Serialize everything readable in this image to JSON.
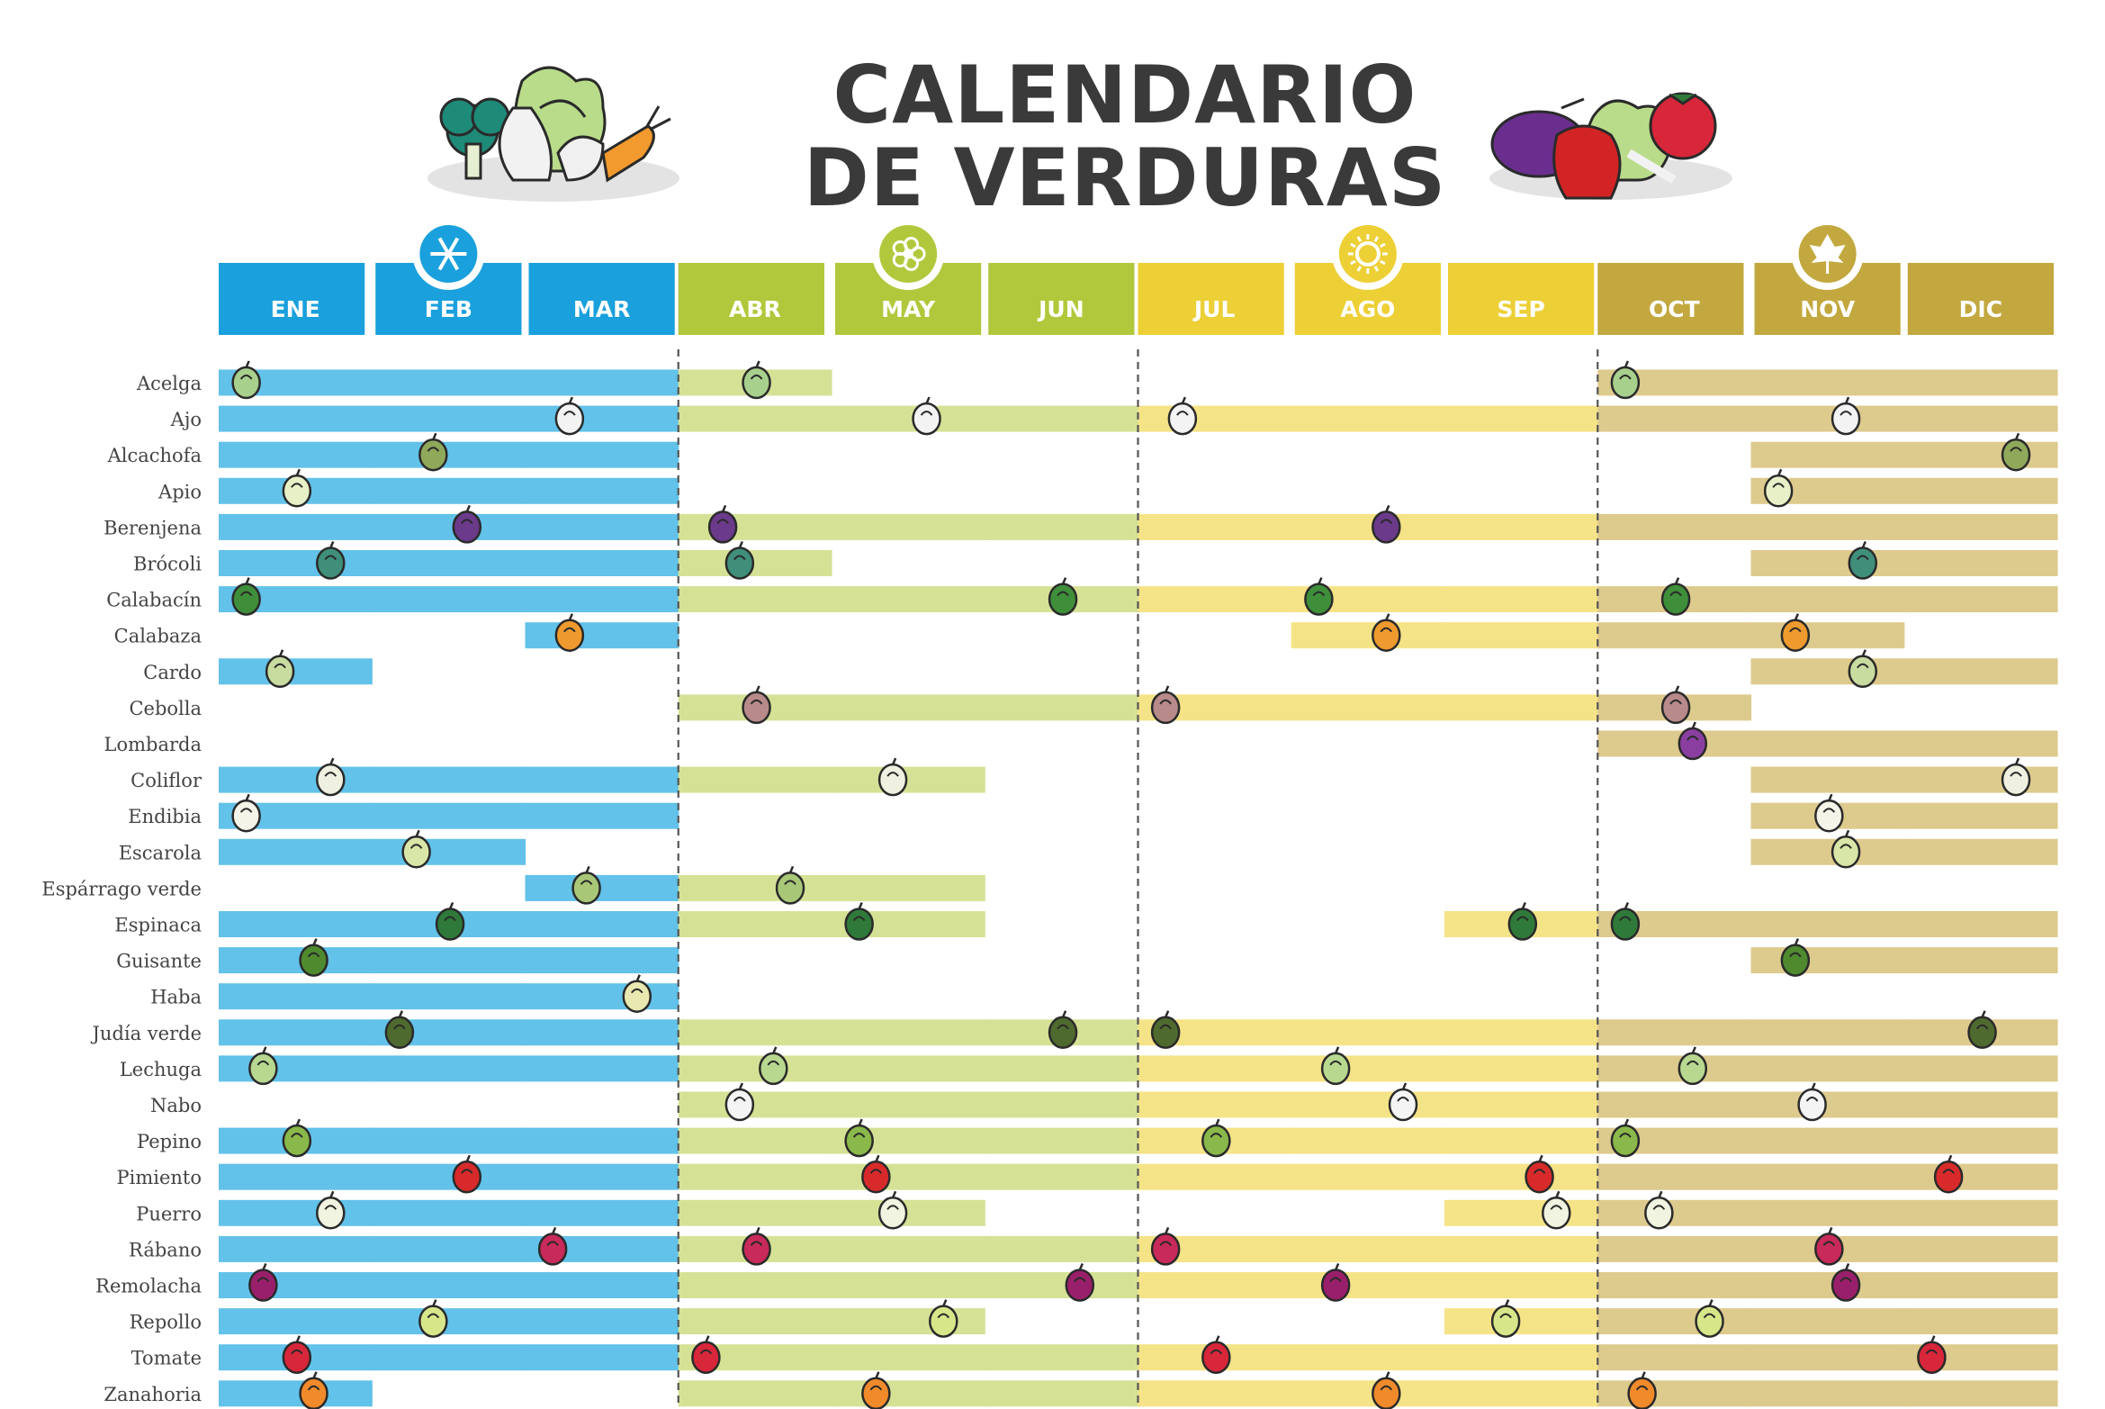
{
  "title_line1": "CALENDARIO",
  "title_line2": "DE VERDURAS",
  "chart_data": {
    "type": "timeline",
    "months": [
      "ENE",
      "FEB",
      "MAR",
      "ABR",
      "MAY",
      "JUN",
      "JUL",
      "AGO",
      "SEP",
      "OCT",
      "NOV",
      "DIC"
    ],
    "seasons": [
      {
        "icon": "snowflake-icon",
        "months": [
          1,
          2,
          3
        ],
        "header_color": "#1aa0dc",
        "bar_color": "#62c2e9"
      },
      {
        "icon": "flower-icon",
        "months": [
          4,
          5,
          6
        ],
        "header_color": "#b2c83c",
        "bar_color": "#d5e296"
      },
      {
        "icon": "sun-icon",
        "months": [
          7,
          8,
          9
        ],
        "header_color": "#edcf36",
        "bar_color": "#f5e387"
      },
      {
        "icon": "leaf-icon",
        "months": [
          10,
          11,
          12
        ],
        "header_color": "#c2a83f",
        "bar_color": "#ddca8d"
      }
    ],
    "rows": [
      {
        "name": "Acelga",
        "months": [
          1,
          2,
          3,
          4,
          10,
          11,
          12
        ],
        "icon": "chard-icon",
        "icon_color": "#a8d08d",
        "icon_months": [
          1,
          4,
          10
        ]
      },
      {
        "name": "Ajo",
        "months": [
          1,
          2,
          3,
          4,
          5,
          6,
          7,
          8,
          9,
          10,
          11,
          12
        ],
        "icon": "garlic-icon",
        "icon_color": "#f3f3f3",
        "icon_months": [
          3,
          5,
          7,
          11
        ]
      },
      {
        "name": "Alcachofa",
        "months": [
          1,
          2,
          3,
          11,
          12
        ],
        "icon": "artichoke-icon",
        "icon_color": "#8fa85a",
        "icon_months": [
          2,
          12
        ]
      },
      {
        "name": "Apio",
        "months": [
          1,
          2,
          3,
          11,
          12
        ],
        "icon": "celery-icon",
        "icon_color": "#e8f0c8",
        "icon_months": [
          1,
          11
        ]
      },
      {
        "name": "Berenjena",
        "months": [
          1,
          2,
          3,
          4,
          5,
          6,
          7,
          8,
          9,
          10,
          11,
          12
        ],
        "icon": "eggplant-icon",
        "icon_color": "#6b3a8a",
        "icon_months": [
          2,
          4,
          8
        ]
      },
      {
        "name": "Brócoli",
        "months": [
          1,
          2,
          3,
          4,
          11,
          12
        ],
        "icon": "broccoli-icon",
        "icon_color": "#3f8f7a",
        "icon_months": [
          1,
          4,
          11
        ]
      },
      {
        "name": "Calabacín",
        "months": [
          1,
          2,
          3,
          4,
          5,
          6,
          7,
          8,
          9,
          10,
          11,
          12
        ],
        "icon": "zucchini-icon",
        "icon_color": "#3f8f3a",
        "icon_months": [
          1,
          6,
          8,
          10
        ]
      },
      {
        "name": "Calabaza",
        "months": [
          3,
          8,
          9,
          10,
          11
        ],
        "icon": "squash-icon",
        "icon_color": "#ef9a2e",
        "icon_months": [
          3,
          8,
          11
        ]
      },
      {
        "name": "Cardo",
        "months": [
          1,
          11,
          12
        ],
        "icon": "cardoon-icon",
        "icon_color": "#c9dca0",
        "icon_months": [
          1,
          11
        ]
      },
      {
        "name": "Cebolla",
        "months": [
          4,
          5,
          6,
          7,
          8,
          9,
          10
        ],
        "icon": "onion-icon",
        "icon_color": "#b88a8a",
        "icon_months": [
          4,
          7,
          10
        ]
      },
      {
        "name": "Lombarda",
        "months": [
          10,
          11,
          12
        ],
        "icon": "red-cabbage-icon",
        "icon_color": "#8a3fa0",
        "icon_months": [
          10
        ]
      },
      {
        "name": "Coliflor",
        "months": [
          1,
          2,
          3,
          4,
          5,
          11,
          12
        ],
        "icon": "cauliflower-icon",
        "icon_color": "#f0f0e0",
        "icon_months": [
          1,
          5,
          12
        ]
      },
      {
        "name": "Endibia",
        "months": [
          1,
          2,
          3,
          11,
          12
        ],
        "icon": "endive-icon",
        "icon_color": "#f4f4e8",
        "icon_months": [
          1,
          11
        ]
      },
      {
        "name": "Escarola",
        "months": [
          1,
          2,
          11,
          12
        ],
        "icon": "escarole-icon",
        "icon_color": "#d8e6a8",
        "icon_months": [
          2,
          11
        ]
      },
      {
        "name": "Espárrago verde",
        "months": [
          3,
          4,
          5
        ],
        "icon": "asparagus-icon",
        "icon_color": "#a8c878",
        "icon_months": [
          3,
          4
        ]
      },
      {
        "name": "Espinaca",
        "months": [
          1,
          2,
          3,
          4,
          5,
          9,
          10,
          11,
          12
        ],
        "icon": "spinach-icon",
        "icon_color": "#2f7a3a",
        "icon_months": [
          2,
          5,
          9,
          10
        ]
      },
      {
        "name": "Guisante",
        "months": [
          1,
          2,
          3,
          11,
          12
        ],
        "icon": "pea-icon",
        "icon_color": "#4f8a2f",
        "icon_months": [
          1,
          11
        ]
      },
      {
        "name": "Haba",
        "months": [
          1,
          2,
          3
        ],
        "icon": "broad-bean-icon",
        "icon_color": "#e8e8b0",
        "icon_months": [
          3
        ]
      },
      {
        "name": "Judía verde",
        "months": [
          1,
          2,
          3,
          4,
          5,
          6,
          7,
          8,
          9,
          10,
          11,
          12
        ],
        "icon": "green-bean-icon",
        "icon_color": "#4f6a2f",
        "icon_months": [
          2,
          6,
          7,
          12
        ]
      },
      {
        "name": "Lechuga",
        "months": [
          1,
          2,
          3,
          4,
          5,
          6,
          7,
          8,
          9,
          10,
          11,
          12
        ],
        "icon": "lettuce-icon",
        "icon_color": "#b8d890",
        "icon_months": [
          1,
          4,
          8,
          10
        ]
      },
      {
        "name": "Nabo",
        "months": [
          4,
          5,
          6,
          7,
          8,
          9,
          10,
          11,
          12
        ],
        "icon": "turnip-icon",
        "icon_color": "#f4f4f4",
        "icon_months": [
          4,
          8,
          11
        ]
      },
      {
        "name": "Pepino",
        "months": [
          1,
          2,
          3,
          4,
          5,
          6,
          7,
          8,
          9,
          10,
          11,
          12
        ],
        "icon": "cucumber-icon",
        "icon_color": "#8ab84a",
        "icon_months": [
          1,
          5,
          7,
          10
        ]
      },
      {
        "name": "Pimiento",
        "months": [
          1,
          2,
          3,
          4,
          5,
          6,
          7,
          8,
          9,
          10,
          11,
          12
        ],
        "icon": "pepper-icon",
        "icon_color": "#d82a2a",
        "icon_months": [
          2,
          5,
          9,
          12
        ]
      },
      {
        "name": "Puerro",
        "months": [
          1,
          2,
          3,
          4,
          5,
          9,
          10,
          11,
          12
        ],
        "icon": "leek-icon",
        "icon_color": "#f0f4e0",
        "icon_months": [
          1,
          5,
          9,
          10
        ]
      },
      {
        "name": "Rábano",
        "months": [
          1,
          2,
          3,
          4,
          5,
          6,
          7,
          8,
          9,
          10,
          11,
          12
        ],
        "icon": "radish-icon",
        "icon_color": "#c82a5a",
        "icon_months": [
          3,
          4,
          7,
          11
        ]
      },
      {
        "name": "Remolacha",
        "months": [
          1,
          2,
          3,
          4,
          5,
          6,
          7,
          8,
          9,
          10,
          11,
          12
        ],
        "icon": "beet-icon",
        "icon_color": "#9a1f6a",
        "icon_months": [
          1,
          6,
          8,
          11
        ]
      },
      {
        "name": "Repollo",
        "months": [
          1,
          2,
          3,
          4,
          5,
          9,
          10,
          11,
          12
        ],
        "icon": "cabbage-icon",
        "icon_color": "#d8e68a",
        "icon_months": [
          2,
          5,
          9,
          10
        ]
      },
      {
        "name": "Tomate",
        "months": [
          1,
          2,
          3,
          4,
          5,
          6,
          7,
          8,
          9,
          10,
          11,
          12
        ],
        "icon": "tomato-icon",
        "icon_color": "#d8263a",
        "icon_months": [
          1,
          4,
          7,
          12
        ]
      },
      {
        "name": "Zanahoria",
        "months": [
          1,
          4,
          5,
          6,
          7,
          8,
          9,
          10,
          11,
          12
        ],
        "icon": "carrot-icon",
        "icon_color": "#f08a2a",
        "icon_months": [
          1,
          5,
          8,
          10
        ]
      }
    ]
  }
}
